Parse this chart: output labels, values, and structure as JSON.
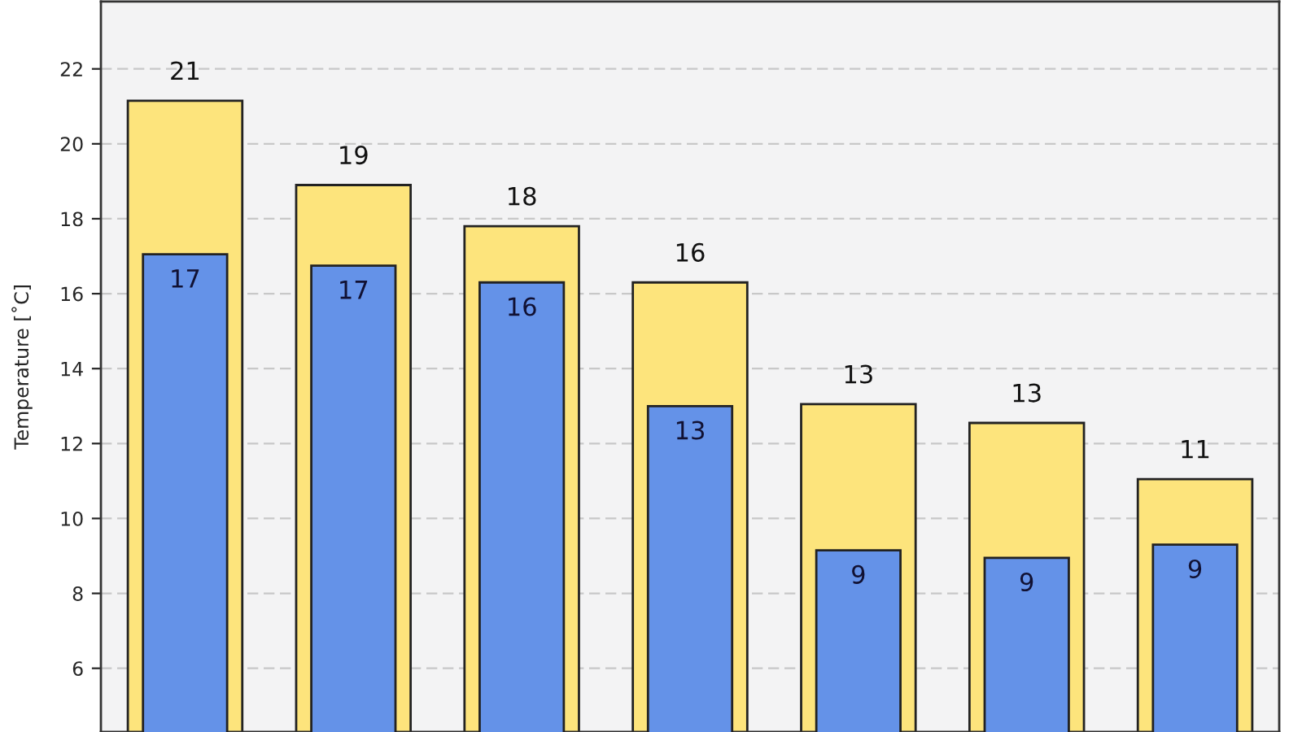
{
  "chart_data": {
    "type": "bar",
    "ylabel": "Temperature [˚C]",
    "categories": [
      null,
      null,
      null,
      null,
      null,
      null,
      null
    ],
    "series": [
      {
        "color": "#fde47c",
        "values": [
          21.15,
          18.9,
          17.8,
          16.3,
          13.05,
          12.55,
          11.05
        ],
        "value_labels": [
          "21",
          "19",
          "18",
          "16",
          "13",
          "13",
          "11"
        ]
      },
      {
        "color": "#6492e8",
        "values": [
          17.05,
          16.75,
          16.3,
          13.0,
          9.15,
          8.95,
          9.3
        ],
        "value_labels": [
          "17",
          "17",
          "16",
          "13",
          "9",
          "9",
          "9"
        ]
      }
    ],
    "ylim": [
      4.3,
      23.8
    ],
    "yticks": [
      6,
      8,
      10,
      12,
      14,
      16,
      18,
      20,
      22
    ],
    "grid": "y",
    "tick_labels": "y"
  }
}
